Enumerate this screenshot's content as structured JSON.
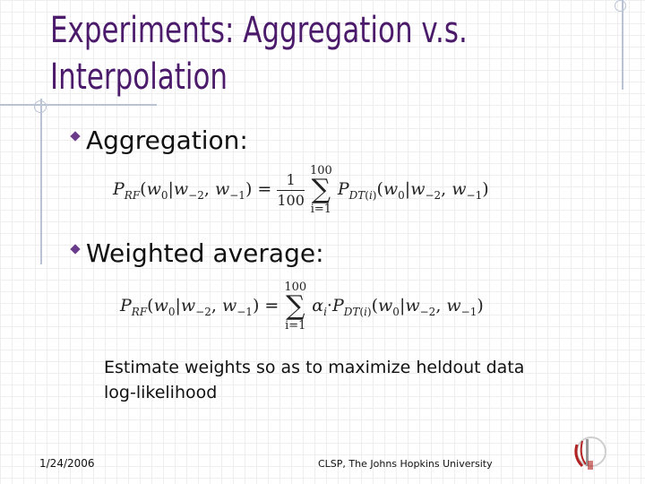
{
  "slide": {
    "title_line1": "Experiments: Aggregation v.s.",
    "title_line2": "Interpolation",
    "bullet1": "Aggregation:",
    "bullet2": "Weighted average:",
    "formula1": {
      "lhs": "P_RF(w0|w-2,w-1) =",
      "frac_num": "1",
      "frac_den": "100",
      "sum_upper": "100",
      "sum_lower": "i=1",
      "rhs": "P_DT(i)(w0|w-2,w-1)"
    },
    "formula2": {
      "lhs": "P_RF(w0|w-2,w-1) =",
      "sum_upper": "100",
      "sum_lower": "i=1",
      "rhs": "α_i·P_DT(i)(w0|w-2,w-1)"
    },
    "note": "Estimate weights so as to maximize heldout data log-likelihood"
  },
  "footer": {
    "date": "1/24/2006",
    "center": "CLSP, The Johns Hopkins University"
  },
  "icons": {
    "logo": "clsp-logo-icon"
  }
}
